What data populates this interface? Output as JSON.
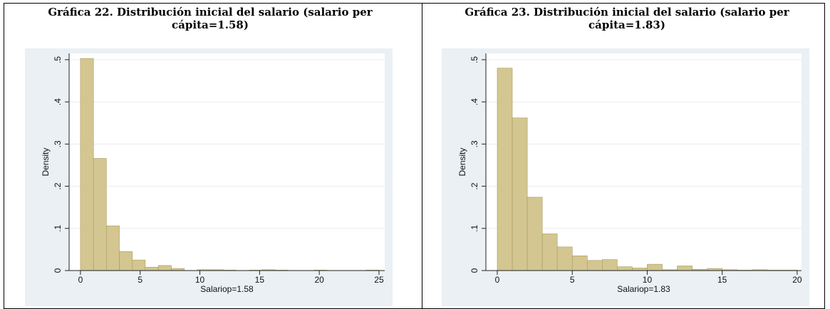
{
  "chart_data": [
    {
      "type": "histogram",
      "title": "Gráfica 22. Distribución inicial del salario (salario per cápita=1.58)",
      "x_label": "Salariop=1.58",
      "y_label": "Density",
      "color": "#d3c690",
      "edge_color": "#a89a5e",
      "bins": [
        0,
        1.09,
        2.17,
        3.26,
        4.35,
        5.43,
        6.52,
        7.61,
        8.7,
        9.78,
        10.87,
        11.96,
        13.04,
        14.13,
        15.22,
        16.3,
        17.39,
        18.48,
        19.57,
        20.65,
        21.74,
        22.83,
        23.91,
        25
      ],
      "values": [
        0.503,
        0.266,
        0.106,
        0.045,
        0.025,
        0.008,
        0.012,
        0.005,
        0,
        0.002,
        0.002,
        0.001,
        0,
        0.001,
        0.002,
        0.001,
        0,
        0,
        0.001,
        0,
        0,
        0,
        0.001
      ],
      "xlim": [
        -0.95,
        25.48
      ],
      "xticks": [
        0,
        5,
        10,
        15,
        20,
        25
      ],
      "ylim": [
        0,
        0.515
      ],
      "yticks": [
        0,
        {
          "value": 0.1,
          "label": ".1"
        },
        {
          "value": 0.2,
          "label": ".2"
        },
        {
          "value": 0.3,
          "label": ".3"
        },
        {
          "value": 0.4,
          "label": ".4"
        },
        {
          "value": 0.5,
          "label": ".5"
        }
      ],
      "grid": true
    },
    {
      "type": "histogram",
      "title": "Gráfica 23. Distribución inicial del salario (salario per cápita=1.83)",
      "x_label": "Salariop=1.83",
      "y_label": "Density",
      "color": "#d3c690",
      "edge_color": "#a89a5e",
      "bins": [
        0,
        1,
        2,
        3,
        4,
        5,
        6,
        7,
        8,
        9,
        10,
        11,
        12,
        13,
        14,
        15,
        16,
        17,
        18,
        19,
        20
      ],
      "values": [
        0.48,
        0.362,
        0.174,
        0.087,
        0.056,
        0.035,
        0.024,
        0.026,
        0.009,
        0.006,
        0.015,
        0.002,
        0.011,
        0.003,
        0.005,
        0.002,
        0.001,
        0.002,
        0.001,
        0.001
      ],
      "xlim": [
        -0.76,
        20.29
      ],
      "xticks": [
        0,
        5,
        10,
        15,
        20
      ],
      "ylim": [
        0,
        0.515
      ],
      "yticks": [
        0,
        {
          "value": 0.1,
          "label": ".1"
        },
        {
          "value": 0.2,
          "label": ".2"
        },
        {
          "value": 0.3,
          "label": ".3"
        },
        {
          "value": 0.4,
          "label": ".4"
        },
        {
          "value": 0.5,
          "label": ".5"
        }
      ],
      "grid": true
    }
  ]
}
